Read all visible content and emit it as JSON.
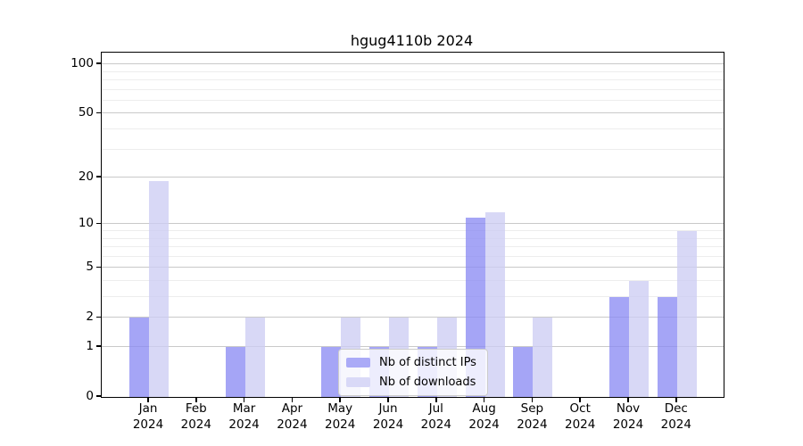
{
  "chart_data": {
    "type": "bar",
    "title": "hgug4110b 2024",
    "categories": [
      "Jan",
      "Feb",
      "Mar",
      "Apr",
      "May",
      "Jun",
      "Jul",
      "Aug",
      "Sep",
      "Oct",
      "Nov",
      "Dec"
    ],
    "year_label": "2024",
    "series": [
      {
        "name": "Nb of distinct IPs",
        "values": [
          2,
          0,
          1,
          0,
          1,
          1,
          1,
          11,
          1,
          0,
          3,
          3
        ]
      },
      {
        "name": "Nb of downloads",
        "values": [
          19,
          0,
          2,
          0,
          2,
          2,
          2,
          12,
          2,
          0,
          4,
          9
        ]
      }
    ],
    "y_scale": "log10(value+1)",
    "y_major_ticks": [
      0,
      1,
      2,
      5,
      10,
      20,
      50,
      100
    ],
    "y_minor_ticks": [
      3,
      4,
      6,
      7,
      8,
      9,
      30,
      40,
      60,
      70,
      80,
      90
    ],
    "ylim": [
      0,
      117
    ],
    "grid": true,
    "legend_position": "lower center"
  },
  "colors": {
    "distinct_ips_fill": "rgba(140,140,244,0.78)",
    "downloads_fill": "rgba(205,205,244,0.78)",
    "distinct_ips_swatch": "#aaaaf7",
    "downloads_swatch": "#d9d9f7",
    "grid_major": "#c9c9c9",
    "grid_minor": "#ededed",
    "spine": "#000000"
  }
}
